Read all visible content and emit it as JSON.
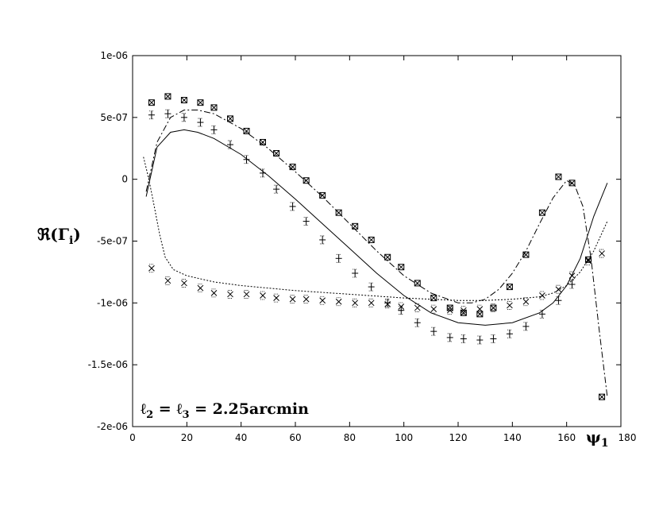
{
  "chart_data": {
    "type": "line",
    "title": "",
    "xlabel": "ψ1",
    "ylabel": "ℜ(Γi)",
    "xlim": [
      0,
      180
    ],
    "ylim": [
      -2e-06,
      1e-06
    ],
    "x_ticks": [
      0,
      20,
      40,
      60,
      80,
      100,
      120,
      140,
      160,
      180
    ],
    "x_tick_labels": [
      "0",
      "20",
      "40",
      "60",
      "80",
      "100",
      "120",
      "140",
      "160",
      "180"
    ],
    "y_ticks": [
      1e-06,
      5e-07,
      0,
      -5e-07,
      -1e-06,
      -1.5e-06,
      -2e-06
    ],
    "y_tick_labels": [
      "1e-06",
      "5e-07",
      "0",
      "-5e-07",
      "-1e-06",
      "-1.5e-06",
      "-2e-06"
    ],
    "grid": false,
    "annotation": "ℓ2 = ℓ3 = 2.25arcmin",
    "ylabel_main": "ℜ(Γ",
    "ylabel_sub": "i",
    "ylabel_close": ")",
    "xlabel_main": "ψ",
    "xlabel_sub": "1",
    "annotation_parts": [
      "ℓ",
      "2",
      " = ℓ",
      "3",
      " = 2.25arcmin"
    ],
    "series": [
      {
        "name": "model solid",
        "style": "solid",
        "x": [
          5,
          9,
          14,
          19,
          24,
          30,
          40,
          50,
          60,
          70,
          80,
          90,
          100,
          110,
          120,
          130,
          140,
          150,
          155,
          160,
          165,
          170,
          175
        ],
        "y": [
          -1.4e-07,
          2.6e-07,
          3.8e-07,
          4e-07,
          3.8e-07,
          3.3e-07,
          2e-07,
          3e-08,
          -1.6e-07,
          -3.6e-07,
          -5.6e-07,
          -7.6e-07,
          -9.4e-07,
          -1.08e-06,
          -1.16e-06,
          -1.18e-06,
          -1.16e-06,
          -1.08e-06,
          -1e-06,
          -8.6e-07,
          -6.4e-07,
          -3e-07,
          -3e-08
        ]
      },
      {
        "name": "model dash-dot",
        "style": "dashdot",
        "x": [
          5,
          9,
          14,
          19,
          24,
          30,
          40,
          50,
          60,
          70,
          80,
          90,
          100,
          110,
          120,
          125,
          130,
          135,
          140,
          145,
          150,
          155,
          160,
          163,
          166,
          169,
          172,
          175
        ],
        "y": [
          -1e-07,
          3e-07,
          5e-07,
          5.6e-07,
          5.6e-07,
          5.3e-07,
          4.1e-07,
          2.5e-07,
          6e-08,
          -1.4e-07,
          -3.6e-07,
          -5.8e-07,
          -7.8e-07,
          -9.2e-07,
          -1e-06,
          -1e-06,
          -9.7e-07,
          -8.9e-07,
          -7.6e-07,
          -5.8e-07,
          -3.6e-07,
          -1.5e-07,
          -1e-08,
          -5e-08,
          -2.2e-07,
          -6.4e-07,
          -1.22e-06,
          -1.76e-06
        ]
      },
      {
        "name": "model dotted",
        "style": "dotted",
        "x": [
          4,
          6,
          8,
          10,
          12,
          15,
          20,
          30,
          40,
          60,
          80,
          100,
          110,
          120,
          125,
          130,
          140,
          150,
          155,
          160,
          165,
          170,
          175
        ],
        "y": [
          1.8e-07,
          0,
          -2.2e-07,
          -4.5e-07,
          -6.3e-07,
          -7.3e-07,
          -7.8e-07,
          -8.3e-07,
          -8.6e-07,
          -9e-07,
          -9.3e-07,
          -9.6e-07,
          -9.7e-07,
          -9.8e-07,
          -9.8e-07,
          -9.8e-07,
          -9.7e-07,
          -9.5e-07,
          -9.2e-07,
          -8.6e-07,
          -7.5e-07,
          -5.8e-07,
          -3.4e-07
        ]
      },
      {
        "name": "data boxes",
        "marker": "box",
        "x": [
          7,
          13,
          19,
          25,
          30,
          36,
          42,
          48,
          53,
          59,
          64,
          70,
          76,
          82,
          88,
          94,
          99,
          105,
          111,
          117,
          122,
          128,
          133,
          139,
          145,
          151,
          157,
          162,
          168,
          173
        ],
        "y": [
          6.2e-07,
          6.7e-07,
          6.4e-07,
          6.2e-07,
          5.8e-07,
          4.9e-07,
          3.9e-07,
          3e-07,
          2.1e-07,
          1e-07,
          -1e-08,
          -1.3e-07,
          -2.7e-07,
          -3.8e-07,
          -4.9e-07,
          -6.3e-07,
          -7.1e-07,
          -8.4e-07,
          -9.6e-07,
          -1.04e-06,
          -1.08e-06,
          -1.09e-06,
          -1.04e-06,
          -8.7e-07,
          -6.1e-07,
          -2.7e-07,
          2e-08,
          -3e-08,
          -6.5e-07,
          -1.76e-06
        ]
      },
      {
        "name": "data plus",
        "marker": "plus",
        "x": [
          7,
          13,
          19,
          25,
          30,
          36,
          42,
          48,
          53,
          59,
          64,
          70,
          76,
          82,
          88,
          94,
          99,
          105,
          111,
          117,
          122,
          128,
          133,
          139,
          145,
          151,
          157,
          162
        ],
        "y": [
          5.2e-07,
          5.3e-07,
          5e-07,
          4.6e-07,
          4e-07,
          2.8e-07,
          1.6e-07,
          5e-08,
          -8e-08,
          -2.2e-07,
          -3.4e-07,
          -4.9e-07,
          -6.4e-07,
          -7.6e-07,
          -8.7e-07,
          -1e-06,
          -1.06e-06,
          -1.16e-06,
          -1.23e-06,
          -1.28e-06,
          -1.29e-06,
          -1.3e-06,
          -1.29e-06,
          -1.25e-06,
          -1.19e-06,
          -1.09e-06,
          -9.8e-07,
          -8.5e-07
        ]
      },
      {
        "name": "data cross",
        "marker": "cross",
        "x": [
          7,
          13,
          19,
          25,
          30,
          36,
          42,
          48,
          53,
          59,
          64,
          70,
          76,
          82,
          88,
          94,
          99,
          105,
          111,
          117,
          122,
          128,
          133,
          139,
          145,
          151,
          157,
          162,
          168,
          173
        ],
        "y": [
          -7.2e-07,
          -8.2e-07,
          -8.4e-07,
          -8.8e-07,
          -9.2e-07,
          -9.3e-07,
          -9.3e-07,
          -9.4e-07,
          -9.6e-07,
          -9.7e-07,
          -9.7e-07,
          -9.8e-07,
          -9.9e-07,
          -1e-06,
          -1e-06,
          -1.01e-06,
          -1.03e-06,
          -1.04e-06,
          -1.05e-06,
          -1.06e-06,
          -1.06e-06,
          -1.05e-06,
          -1.04e-06,
          -1.02e-06,
          -9.9e-07,
          -9.4e-07,
          -8.9e-07,
          -7.8e-07,
          -6.6e-07,
          -6e-07
        ]
      }
    ]
  }
}
